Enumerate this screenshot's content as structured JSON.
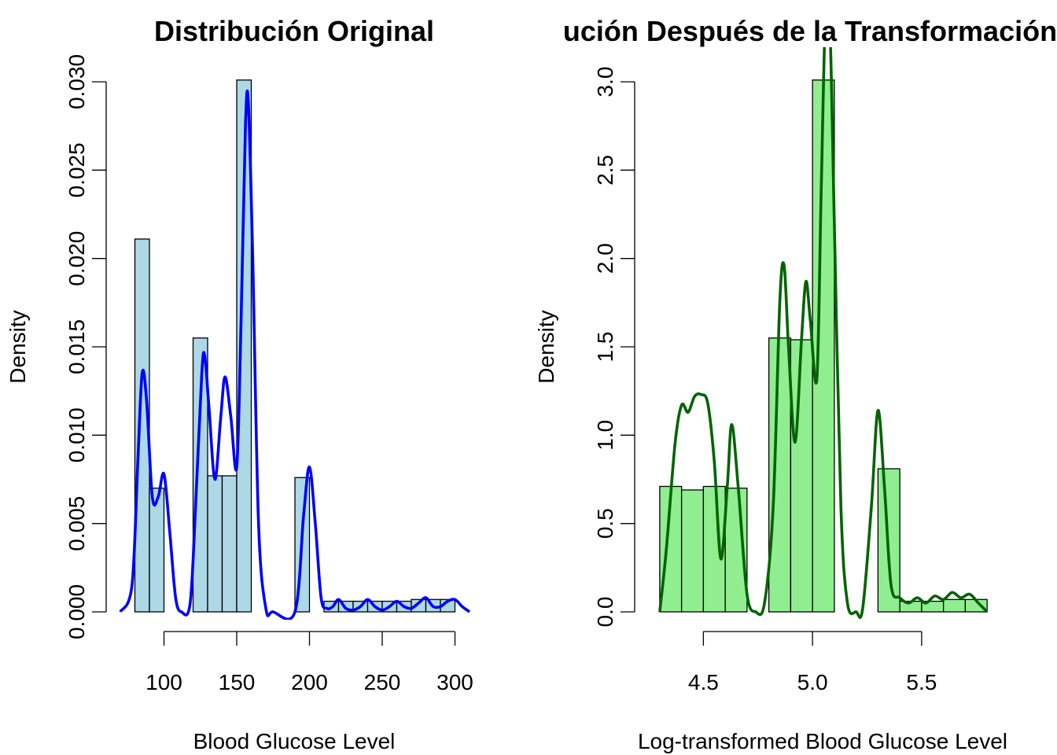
{
  "chart_data": [
    {
      "type": "bar",
      "title": "Distribución Original",
      "xlabel": "Blood Glucose Level",
      "ylabel": "Density",
      "xlim": [
        70,
        310
      ],
      "ylim": [
        0,
        0.03
      ],
      "x_ticks": [
        "100",
        "150",
        "200",
        "250",
        "300"
      ],
      "y_ticks": [
        "0.000",
        "0.005",
        "0.010",
        "0.015",
        "0.020",
        "0.025",
        "0.030"
      ],
      "bar_color": "#add8e6",
      "density_color": "#0000ff",
      "bins": [
        {
          "x0": 80,
          "x1": 90,
          "density": 0.0211
        },
        {
          "x0": 90,
          "x1": 100,
          "density": 0.007
        },
        {
          "x0": 100,
          "x1": 110,
          "density": 0.0
        },
        {
          "x0": 110,
          "x1": 120,
          "density": 0.0
        },
        {
          "x0": 120,
          "x1": 130,
          "density": 0.0155
        },
        {
          "x0": 130,
          "x1": 140,
          "density": 0.0077
        },
        {
          "x0": 140,
          "x1": 150,
          "density": 0.0077
        },
        {
          "x0": 150,
          "x1": 160,
          "density": 0.0301
        },
        {
          "x0": 160,
          "x1": 170,
          "density": 0.0
        },
        {
          "x0": 170,
          "x1": 180,
          "density": 0.0
        },
        {
          "x0": 180,
          "x1": 190,
          "density": 0.0
        },
        {
          "x0": 190,
          "x1": 200,
          "density": 0.0076
        },
        {
          "x0": 200,
          "x1": 210,
          "density": 0.0
        },
        {
          "x0": 210,
          "x1": 220,
          "density": 0.0006
        },
        {
          "x0": 220,
          "x1": 230,
          "density": 0.0006
        },
        {
          "x0": 230,
          "x1": 240,
          "density": 0.0006
        },
        {
          "x0": 240,
          "x1": 250,
          "density": 0.0006
        },
        {
          "x0": 250,
          "x1": 260,
          "density": 0.0006
        },
        {
          "x0": 260,
          "x1": 270,
          "density": 0.0006
        },
        {
          "x0": 270,
          "x1": 280,
          "density": 0.0007
        },
        {
          "x0": 280,
          "x1": 290,
          "density": 0.0007
        },
        {
          "x0": 290,
          "x1": 300,
          "density": 0.0007
        }
      ],
      "density_curve": [
        [
          70,
          0.0
        ],
        [
          78,
          0.0015
        ],
        [
          82,
          0.0085
        ],
        [
          85,
          0.0135
        ],
        [
          88,
          0.012
        ],
        [
          92,
          0.0065
        ],
        [
          96,
          0.0065
        ],
        [
          100,
          0.0078
        ],
        [
          104,
          0.0045
        ],
        [
          108,
          0.0008
        ],
        [
          112,
          0.0
        ],
        [
          118,
          0.0005
        ],
        [
          122,
          0.0065
        ],
        [
          126,
          0.0135
        ],
        [
          128,
          0.0145
        ],
        [
          131,
          0.0115
        ],
        [
          135,
          0.0075
        ],
        [
          139,
          0.011
        ],
        [
          142,
          0.0133
        ],
        [
          146,
          0.011
        ],
        [
          150,
          0.0082
        ],
        [
          153,
          0.0165
        ],
        [
          156,
          0.0275
        ],
        [
          158,
          0.0288
        ],
        [
          161,
          0.02
        ],
        [
          165,
          0.005
        ],
        [
          170,
          0.0002
        ],
        [
          175,
          0.0
        ],
        [
          190,
          0.0
        ],
        [
          196,
          0.0055
        ],
        [
          200,
          0.0082
        ],
        [
          204,
          0.005
        ],
        [
          208,
          0.0008
        ],
        [
          212,
          0.0002
        ],
        [
          216,
          0.0003
        ],
        [
          220,
          0.0007
        ],
        [
          225,
          0.0002
        ],
        [
          230,
          0.0001
        ],
        [
          235,
          0.0003
        ],
        [
          240,
          0.0007
        ],
        [
          245,
          0.0003
        ],
        [
          250,
          0.0001
        ],
        [
          255,
          0.0003
        ],
        [
          260,
          0.0006
        ],
        [
          265,
          0.0003
        ],
        [
          270,
          0.0002
        ],
        [
          275,
          0.0005
        ],
        [
          280,
          0.0008
        ],
        [
          285,
          0.0003
        ],
        [
          290,
          0.0003
        ],
        [
          295,
          0.0006
        ],
        [
          300,
          0.0007
        ],
        [
          305,
          0.0003
        ],
        [
          310,
          0.0
        ]
      ]
    },
    {
      "type": "bar",
      "title": "ución Después de la Transformación L",
      "xlabel": "Log-transformed Blood Glucose Level",
      "ylabel": "Density",
      "xlim": [
        4.25,
        5.85
      ],
      "ylim": [
        0,
        3.0
      ],
      "x_ticks": [
        "4.5",
        "5.0",
        "5.5"
      ],
      "y_ticks": [
        "0.0",
        "0.5",
        "1.0",
        "1.5",
        "2.0",
        "2.5",
        "3.0"
      ],
      "bar_color": "#90ee90",
      "density_color": "#006400",
      "bins": [
        {
          "x0": 4.3,
          "x1": 4.4,
          "density": 0.71
        },
        {
          "x0": 4.4,
          "x1": 4.5,
          "density": 0.69
        },
        {
          "x0": 4.5,
          "x1": 4.6,
          "density": 0.71
        },
        {
          "x0": 4.6,
          "x1": 4.7,
          "density": 0.7
        },
        {
          "x0": 4.7,
          "x1": 4.8,
          "density": 0.0
        },
        {
          "x0": 4.8,
          "x1": 4.9,
          "density": 1.55
        },
        {
          "x0": 4.9,
          "x1": 5.0,
          "density": 1.54
        },
        {
          "x0": 5.0,
          "x1": 5.1,
          "density": 3.01
        },
        {
          "x0": 5.1,
          "x1": 5.2,
          "density": 0.0
        },
        {
          "x0": 5.2,
          "x1": 5.3,
          "density": 0.0
        },
        {
          "x0": 5.3,
          "x1": 5.4,
          "density": 0.81
        },
        {
          "x0": 5.4,
          "x1": 5.5,
          "density": 0.06
        },
        {
          "x0": 5.5,
          "x1": 5.6,
          "density": 0.06
        },
        {
          "x0": 5.6,
          "x1": 5.7,
          "density": 0.07
        },
        {
          "x0": 5.7,
          "x1": 5.8,
          "density": 0.07
        }
      ],
      "density_curve": [
        [
          4.3,
          0.0
        ],
        [
          4.33,
          0.35
        ],
        [
          4.37,
          0.95
        ],
        [
          4.4,
          1.17
        ],
        [
          4.43,
          1.13
        ],
        [
          4.46,
          1.22
        ],
        [
          4.49,
          1.23
        ],
        [
          4.52,
          1.18
        ],
        [
          4.55,
          0.85
        ],
        [
          4.58,
          0.3
        ],
        [
          4.61,
          0.72
        ],
        [
          4.63,
          1.06
        ],
        [
          4.66,
          0.7
        ],
        [
          4.7,
          0.1
        ],
        [
          4.74,
          0.0
        ],
        [
          4.78,
          0.05
        ],
        [
          4.82,
          0.6
        ],
        [
          4.85,
          1.75
        ],
        [
          4.87,
          1.96
        ],
        [
          4.89,
          1.5
        ],
        [
          4.92,
          0.96
        ],
        [
          4.95,
          1.55
        ],
        [
          4.97,
          1.87
        ],
        [
          4.99,
          1.65
        ],
        [
          5.02,
          1.32
        ],
        [
          5.04,
          2.4
        ],
        [
          5.06,
          3.4
        ],
        [
          5.08,
          3.3
        ],
        [
          5.1,
          2.2
        ],
        [
          5.13,
          0.6
        ],
        [
          5.16,
          0.05
        ],
        [
          5.2,
          0.0
        ],
        [
          5.23,
          0.02
        ],
        [
          5.27,
          0.6
        ],
        [
          5.3,
          1.14
        ],
        [
          5.33,
          0.7
        ],
        [
          5.36,
          0.15
        ],
        [
          5.4,
          0.08
        ],
        [
          5.44,
          0.05
        ],
        [
          5.48,
          0.08
        ],
        [
          5.52,
          0.05
        ],
        [
          5.56,
          0.09
        ],
        [
          5.6,
          0.07
        ],
        [
          5.64,
          0.11
        ],
        [
          5.68,
          0.08
        ],
        [
          5.72,
          0.1
        ],
        [
          5.76,
          0.05
        ],
        [
          5.8,
          0.0
        ]
      ]
    }
  ]
}
